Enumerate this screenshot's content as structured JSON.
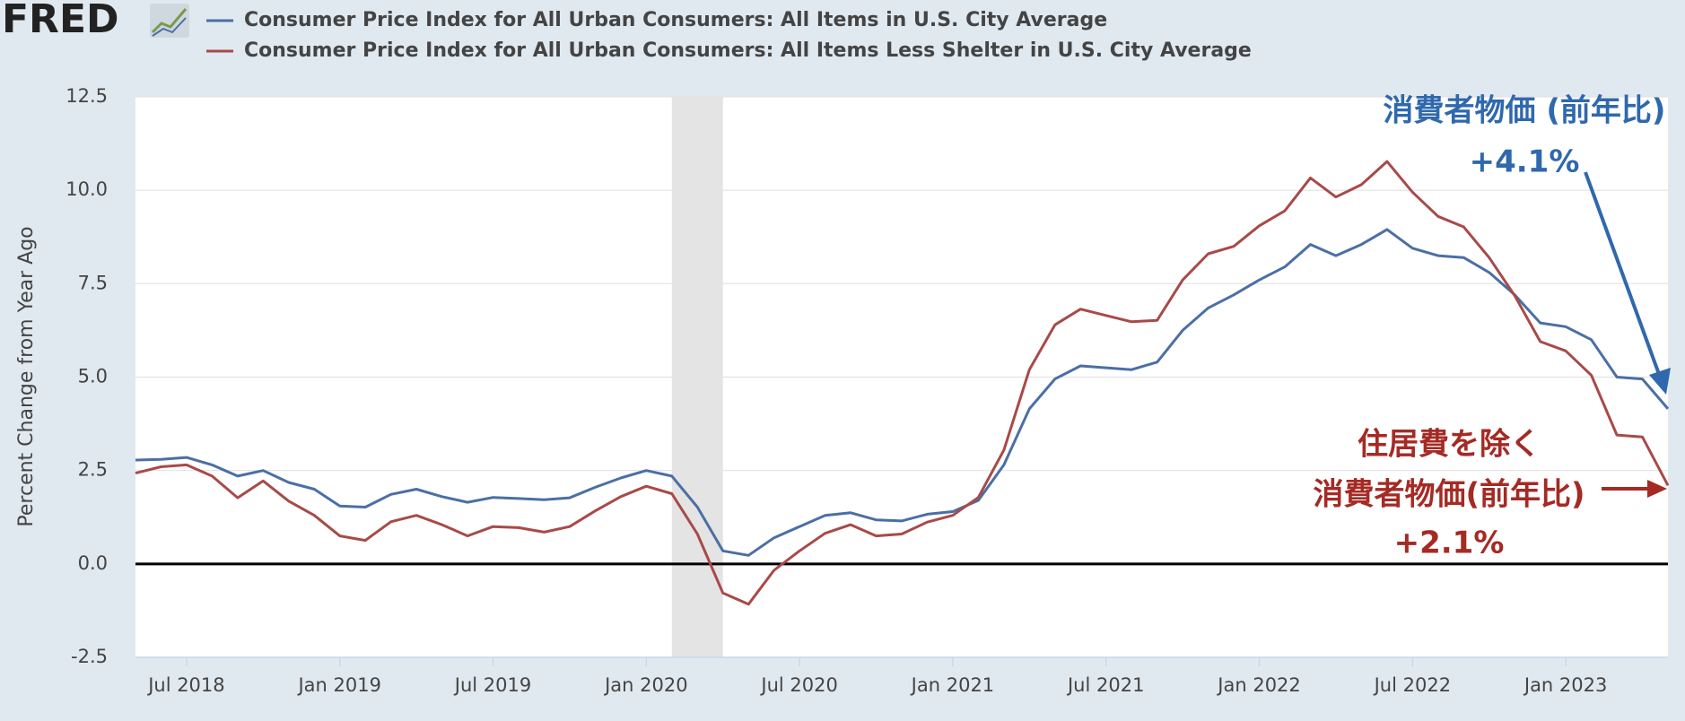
{
  "chart_data": {
    "type": "line",
    "logo": "FRED",
    "ylabel": "Percent Change from Year Ago",
    "x": [
      "2018-05",
      "2018-06",
      "2018-07",
      "2018-08",
      "2018-09",
      "2018-10",
      "2018-11",
      "2018-12",
      "2019-01",
      "2019-02",
      "2019-03",
      "2019-04",
      "2019-05",
      "2019-06",
      "2019-07",
      "2019-08",
      "2019-09",
      "2019-10",
      "2019-11",
      "2019-12",
      "2020-01",
      "2020-02",
      "2020-03",
      "2020-04",
      "2020-05",
      "2020-06",
      "2020-07",
      "2020-08",
      "2020-09",
      "2020-10",
      "2020-11",
      "2020-12",
      "2021-01",
      "2021-02",
      "2021-03",
      "2021-04",
      "2021-05",
      "2021-06",
      "2021-07",
      "2021-08",
      "2021-09",
      "2021-10",
      "2021-11",
      "2021-12",
      "2022-01",
      "2022-02",
      "2022-03",
      "2022-04",
      "2022-05",
      "2022-06",
      "2022-07",
      "2022-08",
      "2022-09",
      "2022-10",
      "2022-11",
      "2022-12",
      "2023-01",
      "2023-02",
      "2023-03",
      "2023-04",
      "2023-05"
    ],
    "series": [
      {
        "name": "Consumer Price Index for All Urban Consumers: All Items in U.S. City Average",
        "color": "#4b6fa5",
        "values": [
          2.78,
          2.8,
          2.85,
          2.65,
          2.35,
          2.5,
          2.18,
          2.0,
          1.55,
          1.52,
          1.86,
          2.0,
          1.8,
          1.65,
          1.78,
          1.75,
          1.72,
          1.77,
          2.05,
          2.3,
          2.5,
          2.35,
          1.52,
          0.35,
          0.23,
          0.7,
          1.0,
          1.3,
          1.37,
          1.18,
          1.15,
          1.33,
          1.4,
          1.7,
          2.65,
          4.15,
          4.95,
          5.3,
          5.25,
          5.2,
          5.4,
          6.25,
          6.85,
          7.2,
          7.6,
          7.95,
          8.55,
          8.25,
          8.55,
          8.95,
          8.45,
          8.25,
          8.2,
          7.8,
          7.2,
          6.45,
          6.35,
          6.0,
          5.0,
          4.95,
          4.15
        ]
      },
      {
        "name": "Consumer Price Index for All Urban Consumers: All Items Less Shelter in U.S. City Average",
        "color": "#a84a48",
        "values": [
          2.43,
          2.6,
          2.65,
          2.35,
          1.77,
          2.22,
          1.68,
          1.3,
          0.75,
          0.63,
          1.13,
          1.3,
          1.05,
          0.75,
          1.0,
          0.97,
          0.85,
          1.0,
          1.42,
          1.8,
          2.08,
          1.88,
          0.8,
          -0.78,
          -1.08,
          -0.17,
          0.35,
          0.82,
          1.05,
          0.75,
          0.8,
          1.12,
          1.3,
          1.78,
          3.05,
          5.2,
          6.4,
          6.82,
          6.65,
          6.48,
          6.52,
          7.6,
          8.3,
          8.5,
          9.05,
          9.45,
          10.33,
          9.82,
          10.15,
          10.77,
          9.95,
          9.3,
          9.02,
          8.2,
          7.18,
          5.95,
          5.7,
          5.05,
          3.45,
          3.4,
          2.1
        ]
      }
    ],
    "xticks": [
      {
        "value": "2018-07",
        "label": "Jul 2018"
      },
      {
        "value": "2019-01",
        "label": "Jan 2019"
      },
      {
        "value": "2019-07",
        "label": "Jul 2019"
      },
      {
        "value": "2020-01",
        "label": "Jan 2020"
      },
      {
        "value": "2020-07",
        "label": "Jul 2020"
      },
      {
        "value": "2021-01",
        "label": "Jan 2021"
      },
      {
        "value": "2021-07",
        "label": "Jul 2021"
      },
      {
        "value": "2022-01",
        "label": "Jan 2022"
      },
      {
        "value": "2022-07",
        "label": "Jul 2022"
      },
      {
        "value": "2023-01",
        "label": "Jan 2023"
      }
    ],
    "ylim": [
      -2.5,
      12.5
    ],
    "yticks": [
      -2.5,
      {
        "value": 0,
        "label": "0.0"
      },
      2.5,
      {
        "value": 5,
        "label": "5.0"
      },
      7.5,
      {
        "value": 10,
        "label": "10.0"
      },
      12.5
    ],
    "grid": true,
    "zero_line": true,
    "recession": [
      "2020-02",
      "2020-04"
    ],
    "annotations": [
      {
        "lines": [
          "消費者物価 (前年比)",
          "+4.1%"
        ],
        "color": "#2f68ad"
      },
      {
        "lines": [
          "住居費を除く",
          "消費者物価(前年比)",
          "+2.1%"
        ],
        "color": "#a52a24"
      }
    ]
  }
}
